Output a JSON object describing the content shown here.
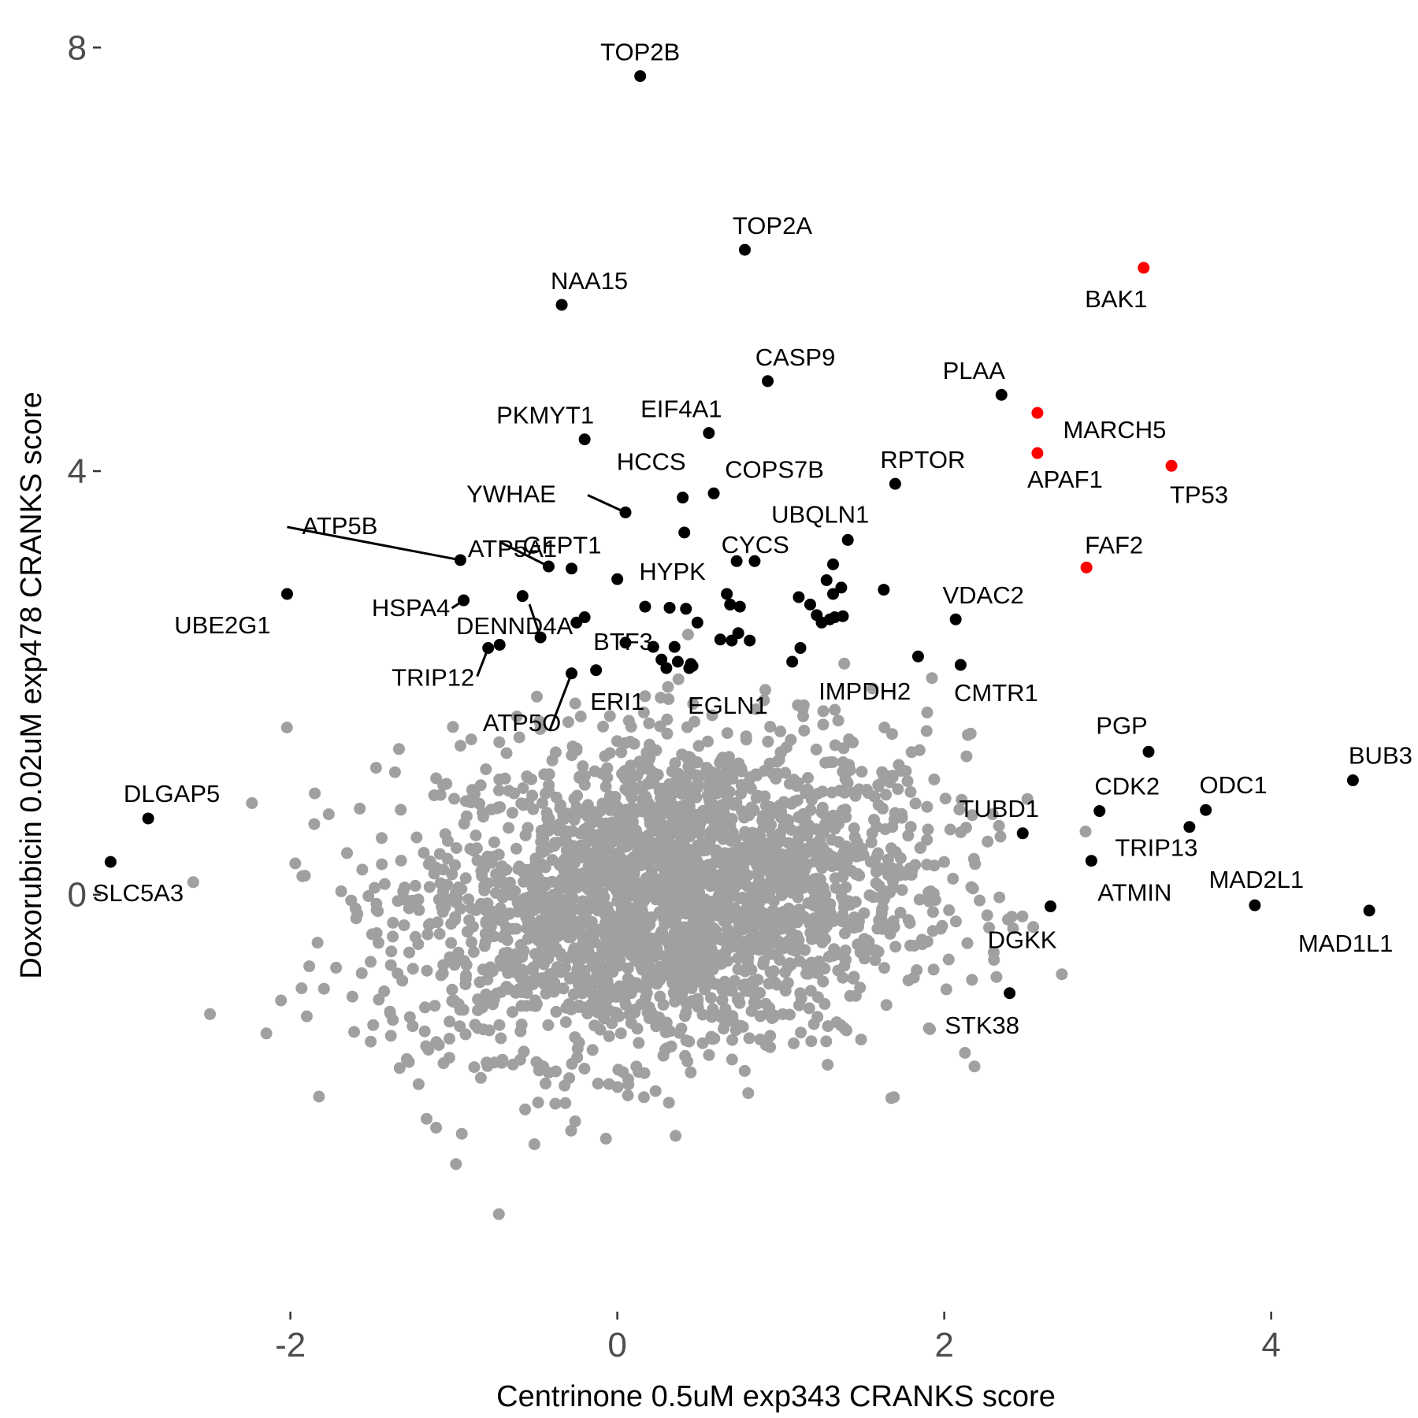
{
  "chart_data": {
    "type": "scatter",
    "title": "",
    "xlabel": "Centrinone 0.5uM exp343 CRANKS score",
    "ylabel": "Doxorubicin 0.02uM exp478 CRANKS score",
    "xlim": [
      -3.15,
      4.85
    ],
    "ylim": [
      -3.9,
      8.3
    ],
    "x_ticks": [
      -2,
      0,
      2,
      4
    ],
    "x_tick_labels": [
      "-2",
      "0",
      "2",
      "4"
    ],
    "y_ticks": [
      0,
      4,
      8
    ],
    "y_tick_labels": [
      "0",
      "4",
      "8"
    ],
    "grid": false,
    "legend": "none",
    "colors": {
      "background_points": "#a0a0a0",
      "highlight_points": "#000000",
      "red_points": "#ff0000",
      "tick_text": "#4d4d4d",
      "axis_title": "#000000"
    },
    "background_cloud": {
      "description_of_shape": "dense bivariate cloud",
      "center": [
        0.3,
        0.0
      ],
      "sd": [
        0.8,
        0.75
      ],
      "n_points": 2600
    },
    "labeled_genes": [
      {
        "gene": "TOP2B",
        "x": 0.14,
        "y": 7.73,
        "color": "black"
      },
      {
        "gene": "TOP2A",
        "x": 0.78,
        "y": 6.09,
        "color": "black"
      },
      {
        "gene": "BAK1",
        "x": 3.22,
        "y": 5.92,
        "color": "red"
      },
      {
        "gene": "NAA15",
        "x": -0.34,
        "y": 5.57,
        "color": "black"
      },
      {
        "gene": "CASP9",
        "x": 0.92,
        "y": 4.85,
        "color": "black"
      },
      {
        "gene": "PLAA",
        "x": 2.35,
        "y": 4.72,
        "color": "black"
      },
      {
        "gene": "MARCH5",
        "x": 2.57,
        "y": 4.55,
        "color": "red"
      },
      {
        "gene": "EIF4A1",
        "x": 0.56,
        "y": 4.36,
        "color": "black"
      },
      {
        "gene": "PKMYT1",
        "x": -0.2,
        "y": 4.3,
        "color": "black"
      },
      {
        "gene": "APAF1",
        "x": 2.57,
        "y": 4.17,
        "color": "red"
      },
      {
        "gene": "TP53",
        "x": 3.39,
        "y": 4.05,
        "color": "red"
      },
      {
        "gene": "RPTOR",
        "x": 1.7,
        "y": 3.88,
        "color": "black"
      },
      {
        "gene": "COPS7B",
        "x": 0.59,
        "y": 3.79,
        "color": "black"
      },
      {
        "gene": "HCCS",
        "x": 0.4,
        "y": 3.75,
        "color": "black"
      },
      {
        "gene": "YWHAE",
        "x": 0.05,
        "y": 3.61,
        "color": "black"
      },
      {
        "gene": "CYCS",
        "x": 0.41,
        "y": 3.42,
        "color": "black"
      },
      {
        "gene": "UBQLN1",
        "x": 1.41,
        "y": 3.35,
        "color": "black"
      },
      {
        "gene": "ATP5B",
        "x": -0.96,
        "y": 3.16,
        "color": "black"
      },
      {
        "gene": "ATP5A1",
        "x": -0.42,
        "y": 3.1,
        "color": "black"
      },
      {
        "gene": "GFPT1",
        "x": -0.28,
        "y": 3.08,
        "color": "black"
      },
      {
        "gene": "HYPK",
        "x": 0.0,
        "y": 2.98,
        "color": "black"
      },
      {
        "gene": "FAF2",
        "x": 2.87,
        "y": 3.09,
        "color": "red"
      },
      {
        "gene": "UBE2G1",
        "x": -2.02,
        "y": 2.84,
        "color": "black"
      },
      {
        "gene": "HSPA4",
        "x": -0.94,
        "y": 2.78,
        "color": "black"
      },
      {
        "gene": "VDAC2",
        "x": 2.07,
        "y": 2.6,
        "color": "black"
      },
      {
        "gene": "DENND4A",
        "x": -0.47,
        "y": 2.43,
        "color": "black"
      },
      {
        "gene": "BTF3",
        "x": 0.05,
        "y": 2.38,
        "color": "black"
      },
      {
        "gene": "TRIP12",
        "x": -0.79,
        "y": 2.33,
        "color": "black"
      },
      {
        "gene": "CMTR1",
        "x": 2.1,
        "y": 2.17,
        "color": "black"
      },
      {
        "gene": "IMPDH2",
        "x": 1.07,
        "y": 2.2,
        "color": "black"
      },
      {
        "gene": "ERI1",
        "x": -0.13,
        "y": 2.12,
        "color": "black"
      },
      {
        "gene": "EGLN1",
        "x": 0.44,
        "y": 2.14,
        "color": "black"
      },
      {
        "gene": "ATP5O",
        "x": -0.28,
        "y": 2.09,
        "color": "black"
      },
      {
        "gene": "PGP",
        "x": 3.25,
        "y": 1.35,
        "color": "black"
      },
      {
        "gene": "BUB3",
        "x": 4.5,
        "y": 1.08,
        "color": "black"
      },
      {
        "gene": "ODC1",
        "x": 3.6,
        "y": 0.8,
        "color": "black"
      },
      {
        "gene": "CDK2",
        "x": 2.95,
        "y": 0.79,
        "color": "black"
      },
      {
        "gene": "DLGAP5",
        "x": -2.87,
        "y": 0.72,
        "color": "black"
      },
      {
        "gene": "TRIP13",
        "x": 3.5,
        "y": 0.64,
        "color": "black"
      },
      {
        "gene": "TUBD1",
        "x": 2.48,
        "y": 0.58,
        "color": "black"
      },
      {
        "gene": "ATMIN",
        "x": 2.9,
        "y": 0.32,
        "color": "black"
      },
      {
        "gene": "SLC5A3",
        "x": -3.1,
        "y": 0.31,
        "color": "black"
      },
      {
        "gene": "MAD2L1",
        "x": 3.9,
        "y": -0.1,
        "color": "black"
      },
      {
        "gene": "DGKK",
        "x": 2.65,
        "y": -0.11,
        "color": "black"
      },
      {
        "gene": "MAD1L1",
        "x": 4.6,
        "y": -0.15,
        "color": "black"
      },
      {
        "gene": "STK38",
        "x": 2.4,
        "y": -0.93,
        "color": "black"
      }
    ],
    "extra_highlight_points": [
      {
        "x": -0.58,
        "y": 2.82
      },
      {
        "x": -0.25,
        "y": 2.57
      },
      {
        "x": -0.2,
        "y": 2.62
      },
      {
        "x": 0.17,
        "y": 2.72
      },
      {
        "x": 0.32,
        "y": 2.71
      },
      {
        "x": 0.42,
        "y": 2.7
      },
      {
        "x": 0.49,
        "y": 2.57
      },
      {
        "x": 0.67,
        "y": 2.84
      },
      {
        "x": 0.69,
        "y": 2.74
      },
      {
        "x": 0.75,
        "y": 2.72
      },
      {
        "x": 0.74,
        "y": 2.47
      },
      {
        "x": 0.63,
        "y": 2.41
      },
      {
        "x": 0.7,
        "y": 2.4
      },
      {
        "x": 0.35,
        "y": 2.34
      },
      {
        "x": 0.73,
        "y": 3.15
      },
      {
        "x": 0.84,
        "y": 3.15
      },
      {
        "x": 1.11,
        "y": 2.81
      },
      {
        "x": 1.18,
        "y": 2.74
      },
      {
        "x": 1.22,
        "y": 2.64
      },
      {
        "x": 1.25,
        "y": 2.57
      },
      {
        "x": 1.32,
        "y": 2.84
      },
      {
        "x": 1.28,
        "y": 2.97
      },
      {
        "x": 1.32,
        "y": 3.12
      },
      {
        "x": 1.37,
        "y": 2.9
      },
      {
        "x": 1.33,
        "y": 2.62
      },
      {
        "x": 1.38,
        "y": 2.63
      },
      {
        "x": 1.63,
        "y": 2.88
      },
      {
        "x": 1.84,
        "y": 2.25
      },
      {
        "x": 1.12,
        "y": 2.33
      },
      {
        "x": 0.81,
        "y": 2.4
      },
      {
        "x": -0.72,
        "y": 2.36
      },
      {
        "x": 0.22,
        "y": 2.34
      },
      {
        "x": 0.45,
        "y": 2.18
      },
      {
        "x": 0.27,
        "y": 2.22
      },
      {
        "x": 0.37,
        "y": 2.2
      },
      {
        "x": 0.46,
        "y": 2.16
      },
      {
        "x": 0.3,
        "y": 2.14
      },
      {
        "x": 1.3,
        "y": 2.6
      }
    ]
  }
}
